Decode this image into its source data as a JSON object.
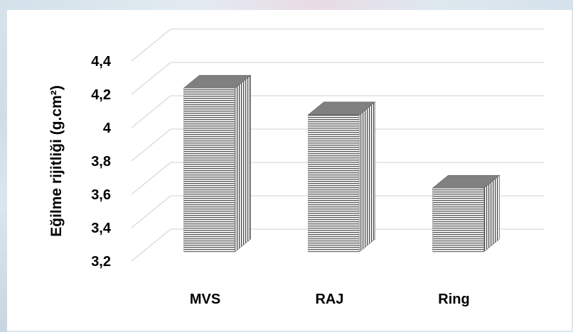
{
  "chart_data": {
    "type": "bar",
    "style": "3d",
    "categories": [
      "MVS",
      "RAJ",
      "Ring"
    ],
    "values": [
      4.28,
      4.12,
      3.68
    ],
    "ylabel": "Eğilme rijitliği (g.cm²)",
    "xlabel": "",
    "ylim": [
      3.2,
      4.4
    ],
    "yticks": [
      3.2,
      3.4,
      3.6,
      3.8,
      4,
      4.2,
      4.4
    ],
    "ytick_labels": [
      "3,2",
      "3,4",
      "3,6",
      "3,8",
      "4",
      "4,2",
      "4,4"
    ],
    "grid": true,
    "legend": "none",
    "colors": {
      "bar_fill": "#ffffff",
      "bar_stripe": "#555555",
      "bar_top": "#808080",
      "bar_side": "#6f6f6f",
      "grid": "#d9d9d9"
    }
  }
}
